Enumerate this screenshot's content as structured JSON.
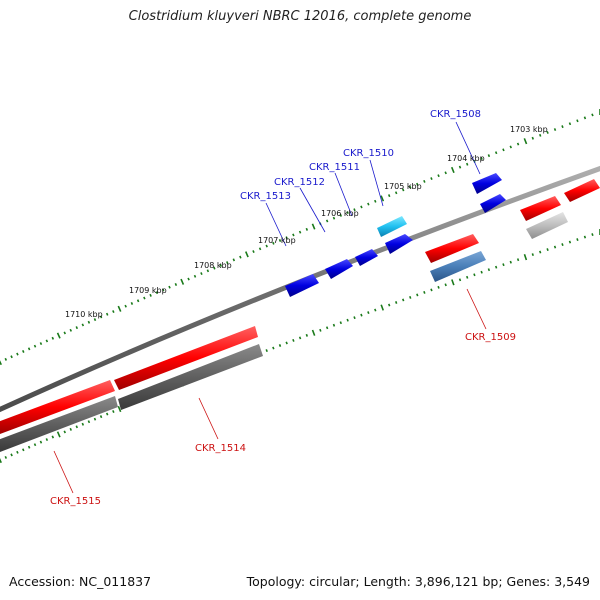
{
  "title": "Clostridium kluyveri NBRC 12016, complete genome",
  "footer": {
    "accession": "Accession: NC_011837",
    "stats": "Topology: circular; Length: 3,896,121 bp; Genes: 3,549"
  },
  "ticks": [
    "1703 kbp",
    "1704 kbp",
    "1705 kbp",
    "1706 kbp",
    "1707 kbp",
    "1708 kbp",
    "1709 kbp",
    "1710 kbp"
  ],
  "genes": [
    {
      "name": "CKR_1508",
      "strand": "forward"
    },
    {
      "name": "CKR_1509",
      "strand": "reverse"
    },
    {
      "name": "CKR_1510",
      "strand": "forward"
    },
    {
      "name": "CKR_1511",
      "strand": "forward"
    },
    {
      "name": "CKR_1512",
      "strand": "forward"
    },
    {
      "name": "CKR_1513",
      "strand": "forward"
    },
    {
      "name": "CKR_1514",
      "strand": "reverse"
    },
    {
      "name": "CKR_1515",
      "strand": "reverse"
    }
  ],
  "colors": {
    "forward_label": "#1a1acc",
    "reverse_label": "#cc1111",
    "tick_dots": "#1a7a1a"
  }
}
